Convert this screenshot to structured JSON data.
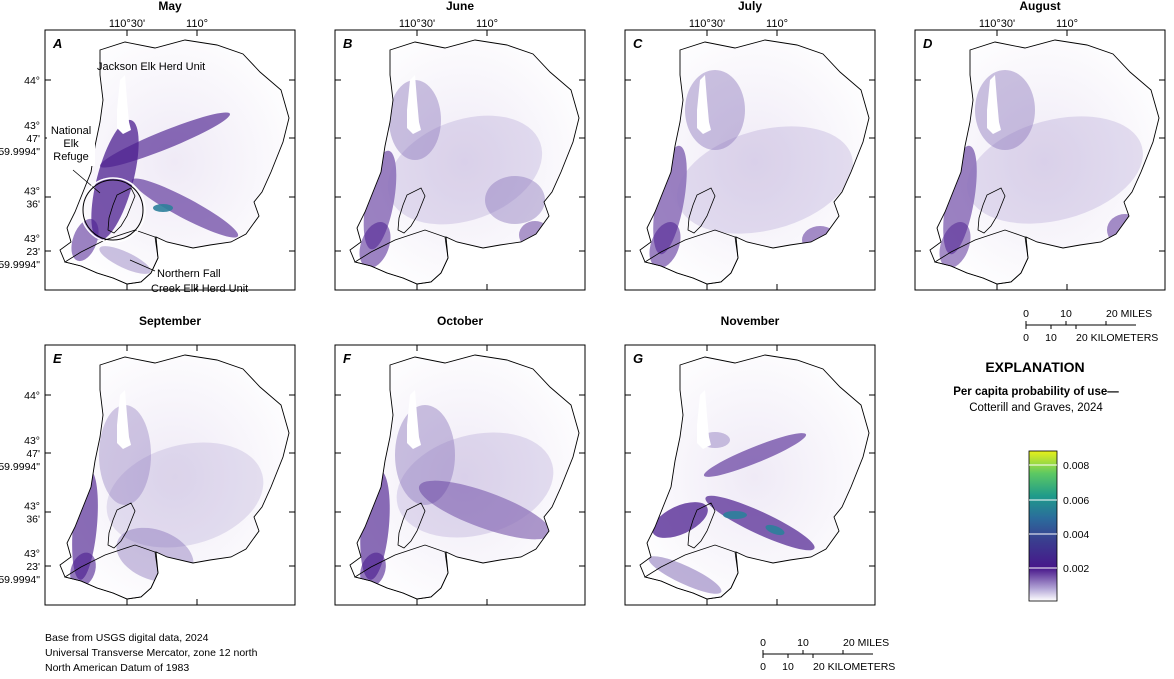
{
  "panels": [
    {
      "letter": "A",
      "month": "May"
    },
    {
      "letter": "B",
      "month": "June"
    },
    {
      "letter": "C",
      "month": "July"
    },
    {
      "letter": "D",
      "month": "August"
    },
    {
      "letter": "E",
      "month": "September"
    },
    {
      "letter": "F",
      "month": "October"
    },
    {
      "letter": "G",
      "month": "November"
    }
  ],
  "lon_labels": [
    "110°30'",
    "110°"
  ],
  "lat_labels": [
    {
      "deg": "44°",
      "min": "",
      "sec": ""
    },
    {
      "deg": "43°",
      "min": "47'",
      "sec": "59.9994\""
    },
    {
      "deg": "43°",
      "min": "36'",
      "sec": ""
    },
    {
      "deg": "43°",
      "min": "23'",
      "sec": "59.9994\""
    }
  ],
  "annotations": {
    "jackson": "Jackson Elk Herd Unit",
    "refuge": [
      "National",
      "Elk",
      "Refuge"
    ],
    "fall_creek": [
      "Northern Fall",
      "Creek Elk Herd Unit"
    ]
  },
  "scale_bar": {
    "mile_ticks": [
      "0",
      "10",
      "20 MILES"
    ],
    "km_ticks": [
      "0",
      "10",
      "20 KILOMETERS"
    ]
  },
  "explanation": {
    "title": "EXPLANATION",
    "subtitle": "Per capita probability of use—",
    "source": "Cotterill and Graves, 2024",
    "ticks": [
      "0.008",
      "0.006",
      "0.004",
      "0.002"
    ],
    "colors": [
      "#ffffff",
      "#a99ad0",
      "#4b1e8f",
      "#3b2a8a",
      "#2c5f9b",
      "#21918c",
      "#3bbf7f",
      "#b8de29",
      "#e8f01a"
    ]
  },
  "credits": [
    "Base from USGS digital data, 2024",
    "Universal Transverse Mercator, zone 12 north",
    "North American Datum of 1983"
  ]
}
